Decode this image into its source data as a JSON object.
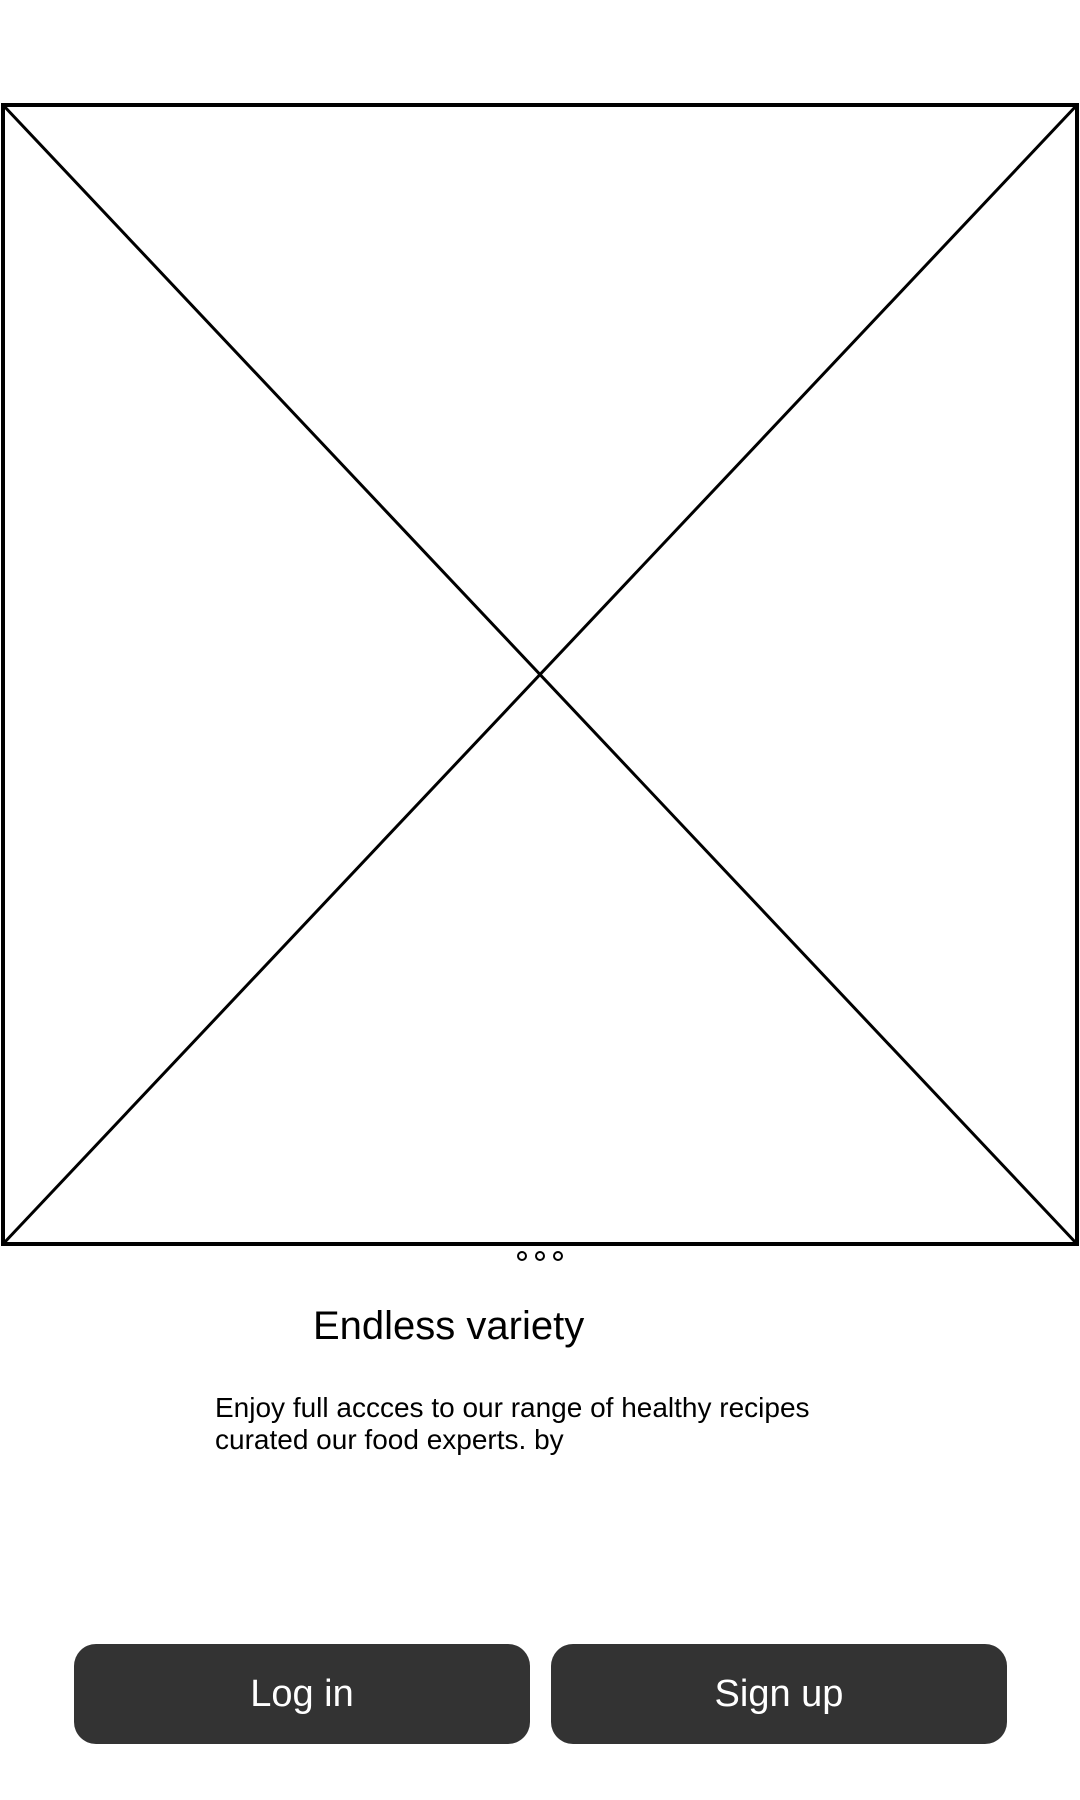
{
  "hero": {
    "image": "image-placeholder-icon"
  },
  "carousel": {
    "pages": 3
  },
  "onboarding": {
    "title": "Endless variety",
    "description_line1": "Enjoy full accces to our range of healthy recipes",
    "description_line2": "curated our food experts. by"
  },
  "actions": {
    "login_label": "Log in",
    "signup_label": "Sign up"
  },
  "colors": {
    "button_bg": "#333333",
    "button_text": "#ffffff",
    "background": "#ffffff",
    "text": "#000000"
  }
}
